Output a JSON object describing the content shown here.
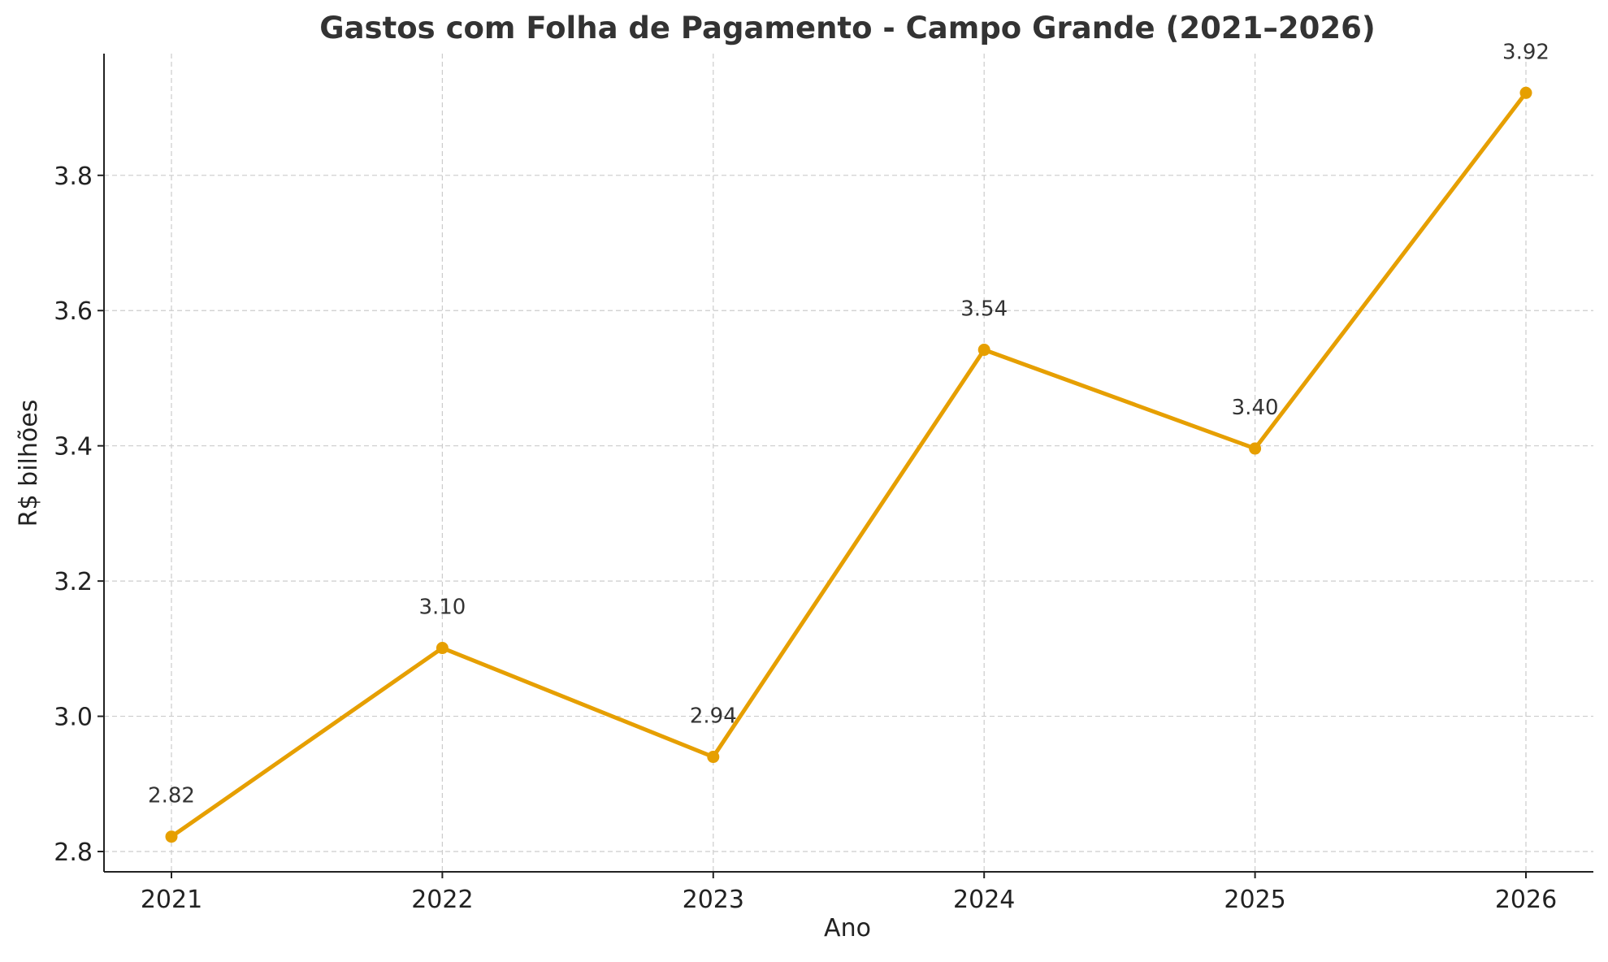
{
  "chart_data": {
    "type": "line",
    "title": "Gastos com Folha de Pagamento - Campo Grande (2021–2026)",
    "xlabel": "Ano",
    "ylabel": "R$ bilhões",
    "x": [
      "2021",
      "2022",
      "2023",
      "2024",
      "2025",
      "2026"
    ],
    "series": [
      {
        "values": [
          2.822,
          3.101,
          2.94,
          3.542,
          3.396,
          3.922
        ],
        "data_labels": [
          "2.82",
          "3.10",
          "2.94",
          "3.54",
          "3.40",
          "3.92"
        ],
        "color": "#E69F00"
      }
    ],
    "yticks": [
      2.8,
      3.0,
      3.2,
      3.4,
      3.6,
      3.8
    ],
    "ytick_labels": [
      "2.8",
      "3.0",
      "3.2",
      "3.4",
      "3.6",
      "3.8"
    ],
    "ylim": [
      2.77,
      3.98
    ],
    "grid": true,
    "grid_style": "dashed",
    "marker": "circle"
  }
}
